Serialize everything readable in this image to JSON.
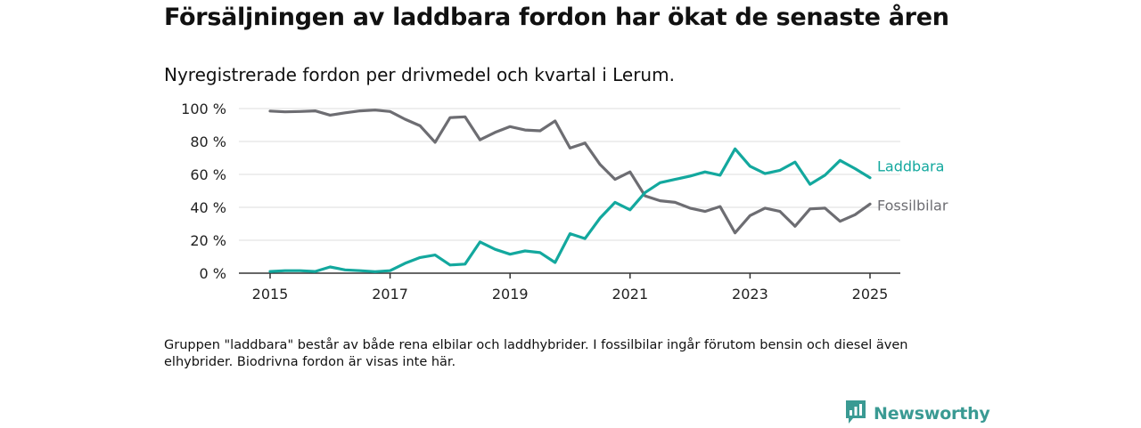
{
  "header": {
    "title": "Försäljningen av laddbara fordon har ökat de senaste åren",
    "subtitle": "Nyregistrerade fordon per drivmedel och kvartal i Lerum."
  },
  "footer": {
    "note": "Gruppen \"laddbara\" består av både rena elbilar och laddhybrider. I fossilbilar ingår förutom bensin och diesel även elhybrider. Biodrivna fordon är visas inte här.",
    "brand": "Newsworthy",
    "brand_icon": "newsworthy-logo-icon"
  },
  "colors": {
    "laddbara": "#13a89e",
    "fossilbilar": "#6d6d72",
    "grid": "#dddddd",
    "axis": "#333333",
    "text": "#222222"
  },
  "chart_data": {
    "type": "line",
    "xlim": [
      2015,
      2025
    ],
    "ylim": [
      0,
      100
    ],
    "x_ticks": [
      2015,
      2017,
      2019,
      2021,
      2023,
      2025
    ],
    "x_tick_labels": [
      "2015",
      "2017",
      "2019",
      "2021",
      "2023",
      "2025"
    ],
    "y_ticks": [
      0,
      20,
      40,
      60,
      80,
      100
    ],
    "y_tick_labels": [
      "0 %",
      "20 %",
      "40 %",
      "60 %",
      "80 %",
      "100 %"
    ],
    "grid": "horizontal",
    "legend": "direct labels at line ends",
    "x": [
      2015.0,
      2015.25,
      2015.5,
      2015.75,
      2016.0,
      2016.25,
      2016.5,
      2016.75,
      2017.0,
      2017.25,
      2017.5,
      2017.75,
      2018.0,
      2018.25,
      2018.5,
      2018.75,
      2019.0,
      2019.25,
      2019.5,
      2019.75,
      2020.0,
      2020.25,
      2020.5,
      2020.75,
      2021.0,
      2021.25,
      2021.5,
      2021.75,
      2022.0,
      2022.25,
      2022.5,
      2022.75,
      2023.0,
      2023.25,
      2023.5,
      2023.75,
      2024.0,
      2024.25,
      2024.5,
      2024.75,
      2025.0
    ],
    "series": [
      {
        "name": "Fossilbilar",
        "values": [
          98.5,
          98.0,
          98.2,
          98.6,
          96.0,
          97.4,
          98.6,
          99.1,
          98.2,
          93.5,
          89.5,
          79.5,
          94.5,
          95.0,
          81.0,
          85.5,
          89.0,
          87.0,
          86.5,
          92.5,
          76.0,
          79.0,
          66.0,
          57.0,
          61.5,
          47.0,
          44.0,
          43.0,
          39.5,
          37.5,
          40.5,
          24.5,
          35.0,
          39.5,
          37.5,
          28.5,
          39.0,
          39.5,
          31.5,
          35.5,
          42.0
        ]
      },
      {
        "name": "Laddbara",
        "values": [
          1.0,
          1.5,
          1.5,
          1.0,
          3.8,
          2.0,
          1.5,
          0.9,
          1.5,
          6.0,
          9.5,
          11.0,
          5.0,
          5.5,
          19.0,
          14.5,
          11.5,
          13.5,
          12.5,
          6.5,
          24.0,
          21.0,
          33.5,
          43.0,
          38.5,
          49.0,
          55.0,
          57.0,
          59.0,
          61.5,
          59.5,
          75.5,
          65.0,
          60.5,
          62.5,
          67.5,
          54.0,
          59.5,
          68.5,
          63.5,
          58.0
        ]
      }
    ]
  }
}
